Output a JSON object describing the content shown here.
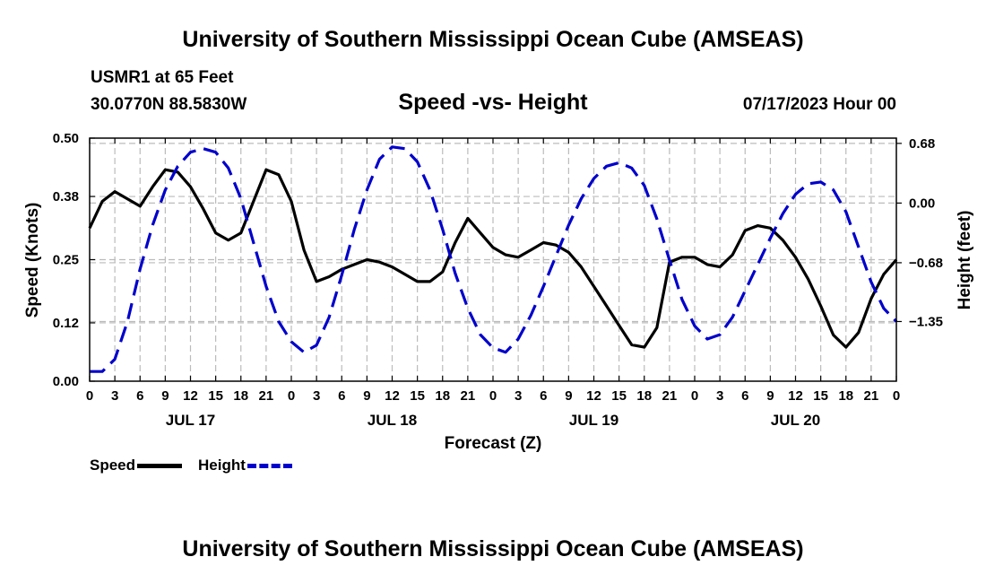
{
  "header": {
    "main_title": "University of Southern Mississippi Ocean Cube (AMSEAS)",
    "station": "USMR1 at 65 Feet",
    "coords": "30.0770N  88.5830W",
    "subtitle": "Speed -vs- Height",
    "datetime": "07/17/2023 Hour 00"
  },
  "footer": {
    "title": "University of Southern Mississippi Ocean Cube (AMSEAS)"
  },
  "legend": {
    "speed_label": "Speed",
    "height_label": "Height"
  },
  "colors": {
    "speed": "#000000",
    "height": "#0000cc",
    "grid": "#bbbbbb"
  },
  "chart_data": {
    "type": "line",
    "title": "Speed -vs- Height",
    "xlabel": "Forecast (Z)",
    "ylabel_left": "Speed (Knots)",
    "ylabel_right": "Height (feet)",
    "x_unit": "hours since 07/17/2023 00Z",
    "xlim": [
      0,
      96
    ],
    "ylim_left": [
      0,
      0.5
    ],
    "ylim_right": [
      -2.03,
      0.74
    ],
    "left_ticks": [
      0.0,
      0.12,
      0.25,
      0.38,
      0.5
    ],
    "left_tick_labels": [
      "0.00",
      "0.12",
      "0.25",
      "0.38",
      "0.50"
    ],
    "right_ticks": [
      0.68,
      0.0,
      -0.68,
      -1.35
    ],
    "right_tick_labels": [
      "0.68",
      "0.00",
      "−0.68",
      "−1.35"
    ],
    "x_ticks": [
      0,
      3,
      6,
      9,
      12,
      15,
      18,
      21,
      24,
      27,
      30,
      33,
      36,
      39,
      42,
      45,
      48,
      51,
      54,
      57,
      60,
      63,
      66,
      69,
      72,
      75,
      78,
      81,
      84,
      87,
      90,
      93,
      96
    ],
    "x_tick_labels": [
      "0",
      "3",
      "6",
      "9",
      "12",
      "15",
      "18",
      "21",
      "0",
      "3",
      "6",
      "9",
      "12",
      "15",
      "18",
      "21",
      "0",
      "3",
      "6",
      "9",
      "12",
      "15",
      "18",
      "21",
      "0",
      "3",
      "6",
      "9",
      "12",
      "15",
      "18",
      "21",
      "0"
    ],
    "day_labels": [
      {
        "x": 12,
        "label": "JUL 17"
      },
      {
        "x": 36,
        "label": "JUL 18"
      },
      {
        "x": 60,
        "label": "JUL 19"
      },
      {
        "x": 84,
        "label": "JUL 20"
      }
    ],
    "grid": true,
    "series": [
      {
        "name": "Speed",
        "axis": "left",
        "style": "solid",
        "points": [
          [
            0,
            0.315
          ],
          [
            1.5,
            0.37
          ],
          [
            3,
            0.39
          ],
          [
            4.5,
            0.375
          ],
          [
            6,
            0.36
          ],
          [
            7.5,
            0.4
          ],
          [
            9,
            0.435
          ],
          [
            10.5,
            0.43
          ],
          [
            12,
            0.4
          ],
          [
            13.5,
            0.355
          ],
          [
            15,
            0.305
          ],
          [
            16.5,
            0.29
          ],
          [
            18,
            0.305
          ],
          [
            19.5,
            0.37
          ],
          [
            21,
            0.435
          ],
          [
            22.5,
            0.425
          ],
          [
            24,
            0.37
          ],
          [
            25.5,
            0.27
          ],
          [
            27,
            0.205
          ],
          [
            28.5,
            0.215
          ],
          [
            30,
            0.23
          ],
          [
            31.5,
            0.24
          ],
          [
            33,
            0.25
          ],
          [
            34.5,
            0.245
          ],
          [
            36,
            0.235
          ],
          [
            37.5,
            0.22
          ],
          [
            39,
            0.205
          ],
          [
            40.5,
            0.205
          ],
          [
            42,
            0.225
          ],
          [
            43.5,
            0.285
          ],
          [
            45,
            0.335
          ],
          [
            46.5,
            0.305
          ],
          [
            48,
            0.275
          ],
          [
            49.5,
            0.26
          ],
          [
            51,
            0.255
          ],
          [
            52.5,
            0.27
          ],
          [
            54,
            0.285
          ],
          [
            55.5,
            0.28
          ],
          [
            57,
            0.265
          ],
          [
            58.5,
            0.235
          ],
          [
            60,
            0.195
          ],
          [
            61.5,
            0.155
          ],
          [
            63,
            0.115
          ],
          [
            64.5,
            0.075
          ],
          [
            66,
            0.07
          ],
          [
            67.5,
            0.11
          ],
          [
            69,
            0.245
          ],
          [
            70.5,
            0.255
          ],
          [
            72,
            0.255
          ],
          [
            73.5,
            0.24
          ],
          [
            75,
            0.235
          ],
          [
            76.5,
            0.26
          ],
          [
            78,
            0.31
          ],
          [
            79.5,
            0.32
          ],
          [
            81,
            0.315
          ],
          [
            82.5,
            0.29
          ],
          [
            84,
            0.255
          ],
          [
            85.5,
            0.21
          ],
          [
            87,
            0.155
          ],
          [
            88.5,
            0.095
          ],
          [
            90,
            0.07
          ],
          [
            91.5,
            0.1
          ],
          [
            93,
            0.17
          ],
          [
            94.5,
            0.22
          ],
          [
            96,
            0.25
          ]
        ]
      },
      {
        "name": "Height",
        "axis": "right",
        "style": "dashed",
        "points": [
          [
            0,
            -1.92
          ],
          [
            1.5,
            -1.92
          ],
          [
            3,
            -1.78
          ],
          [
            4.5,
            -1.35
          ],
          [
            6,
            -0.75
          ],
          [
            7.5,
            -0.25
          ],
          [
            9,
            0.15
          ],
          [
            10.5,
            0.42
          ],
          [
            12,
            0.58
          ],
          [
            13.5,
            0.62
          ],
          [
            15,
            0.58
          ],
          [
            16.5,
            0.4
          ],
          [
            18,
            0.05
          ],
          [
            19.5,
            -0.45
          ],
          [
            21,
            -0.95
          ],
          [
            22.5,
            -1.35
          ],
          [
            24,
            -1.58
          ],
          [
            25.5,
            -1.7
          ],
          [
            27,
            -1.62
          ],
          [
            28.5,
            -1.3
          ],
          [
            30,
            -0.82
          ],
          [
            31.5,
            -0.3
          ],
          [
            33,
            0.15
          ],
          [
            34.5,
            0.5
          ],
          [
            36,
            0.64
          ],
          [
            37.5,
            0.62
          ],
          [
            39,
            0.47
          ],
          [
            40.5,
            0.15
          ],
          [
            42,
            -0.3
          ],
          [
            43.5,
            -0.8
          ],
          [
            45,
            -1.2
          ],
          [
            46.5,
            -1.5
          ],
          [
            48,
            -1.65
          ],
          [
            49.5,
            -1.7
          ],
          [
            51,
            -1.55
          ],
          [
            52.5,
            -1.28
          ],
          [
            54,
            -0.95
          ],
          [
            55.5,
            -0.6
          ],
          [
            57,
            -0.25
          ],
          [
            58.5,
            0.05
          ],
          [
            60,
            0.28
          ],
          [
            61.5,
            0.42
          ],
          [
            63,
            0.46
          ],
          [
            64.5,
            0.4
          ],
          [
            66,
            0.2
          ],
          [
            67.5,
            -0.18
          ],
          [
            69,
            -0.65
          ],
          [
            70.5,
            -1.1
          ],
          [
            72,
            -1.4
          ],
          [
            73.5,
            -1.55
          ],
          [
            75,
            -1.5
          ],
          [
            76.5,
            -1.3
          ],
          [
            78,
            -1.0
          ],
          [
            79.5,
            -0.7
          ],
          [
            81,
            -0.4
          ],
          [
            82.5,
            -0.12
          ],
          [
            84,
            0.1
          ],
          [
            85.5,
            0.22
          ],
          [
            87,
            0.24
          ],
          [
            88.5,
            0.15
          ],
          [
            90,
            -0.1
          ],
          [
            91.5,
            -0.5
          ],
          [
            93,
            -0.9
          ],
          [
            94.5,
            -1.2
          ],
          [
            96,
            -1.35
          ]
        ]
      }
    ]
  }
}
